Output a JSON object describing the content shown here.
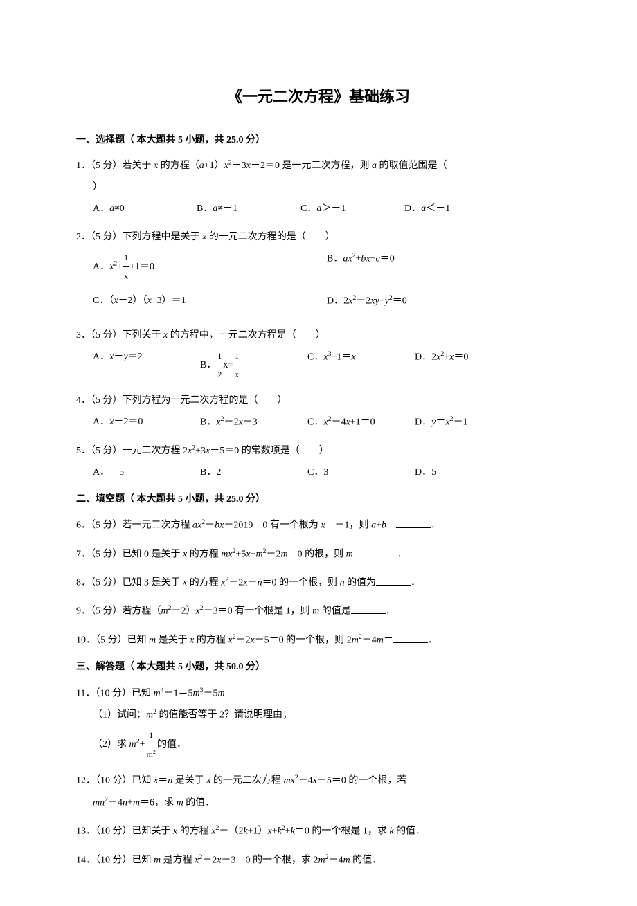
{
  "title": "《一元二次方程》基础练习",
  "sections": {
    "s1": {
      "header": "一、选择题（ 本大题共 5 小题，共 25.0 分）"
    },
    "s2": {
      "header": "二、填空题（ 本大题共 5 小题，共 25.0 分）"
    },
    "s3": {
      "header": "三、解答题（ 本大题共 5 小题，共 50.0 分）"
    }
  },
  "q1": {
    "stem_a": "1．（5 分）若关于 ",
    "stem_b": " 的方程（",
    "stem_c": "+1）",
    "stem_d": "－3",
    "stem_e": "－2＝0 是一元二次方程，则 ",
    "stem_f": " 的取值范围是（",
    "paren_close": "）",
    "optA_a": "A．",
    "optA_b": "≠0",
    "optB_a": "B．",
    "optB_b": "≠－1",
    "optC_a": "C．",
    "optC_b": "＞－1",
    "optD_a": "D．",
    "optD_b": "＜－1",
    "var_x": "x",
    "var_a": "a"
  },
  "q2": {
    "stem_a": "2．（5 分）下列方程中是关于 ",
    "stem_b": " 的一元二次方程的是（　　）",
    "var_x": "x",
    "optA_a": "A．",
    "optA_num": "1",
    "optA_den": "x",
    "optA_b": "+",
    "optA_c": "+1＝0",
    "optB_a": "B．",
    "optB_b": "+",
    "optB_c": "+",
    "optB_d": "＝0",
    "optC_a": "C．（",
    "optC_b": "－2）（",
    "optC_c": "+3）＝1",
    "optD_a": "D．2",
    "optD_b": "－2",
    "optD_c": "+",
    "optD_d": "＝0",
    "var_a": "ax",
    "var_bx": "bx",
    "var_c": "c",
    "var_xy": "xy",
    "var_y": "y"
  },
  "q3": {
    "stem_a": "3．（5 分）下列关于 ",
    "stem_b": " 的方程中，一元二次方程是（　　）",
    "var_x": "x",
    "optA_a": "A．",
    "optA_b": "－",
    "optA_c": "＝2",
    "var_y": "y",
    "optB_a": "B．",
    "optB_num1": "1",
    "optB_den1": "2",
    "optB_mid": "x=",
    "optB_num2": "1",
    "optB_den2": "x",
    "optC_a": "C．",
    "optC_b": "+1＝",
    "optD_a": "D．2",
    "optD_b": "+",
    "optD_c": "＝0"
  },
  "q4": {
    "stem": "4．（5 分）下列方程为一元二次方程的是（　　）",
    "optA_a": "A．",
    "optA_b": "－2＝0",
    "optB_a": "B．",
    "optB_b": "－2",
    "optB_c": "－3",
    "optC_a": "C．",
    "optC_b": "－4",
    "optC_c": "+1＝0",
    "optD_a": "D．",
    "optD_b": "＝",
    "optD_c": "－1",
    "var_x": "x",
    "var_y": "y"
  },
  "q5": {
    "stem_a": "5．（5 分）一元二次方程 2",
    "stem_b": "+3",
    "stem_c": "－5＝0 的常数项是（　　）",
    "var_x": "x",
    "optA": "A．－5",
    "optB": "B．2",
    "optC": "C．3",
    "optD": "D．5"
  },
  "q6": {
    "stem_a": "6．（5 分）若一元二次方程 ",
    "stem_b": "－",
    "stem_c": "－2019＝0 有一个根为 ",
    "stem_d": "＝－1，则 ",
    "stem_e": "+",
    "stem_f": "＝",
    "stem_g": "．",
    "var_ax": "ax",
    "var_bx": "bx",
    "var_x": "x",
    "var_a": "a",
    "var_b": "b"
  },
  "q7": {
    "stem_a": "7．（5 分）已知 0 是关于 ",
    "stem_b": " 的方程 ",
    "stem_c": "+5",
    "stem_d": "+",
    "stem_e": "－2",
    "stem_f": "＝0 的根，则 ",
    "stem_g": "＝",
    "stem_h": "．",
    "var_x": "x",
    "var_mx": "mx",
    "var_m": "m"
  },
  "q8": {
    "stem_a": "8．（5 分）已知 3 是关于 ",
    "stem_b": " 的方程 ",
    "stem_c": "－2",
    "stem_d": "－",
    "stem_e": "＝0 的一个根，则 ",
    "stem_f": " 的值为",
    "stem_g": "．",
    "var_x": "x",
    "var_n": "n"
  },
  "q9": {
    "stem_a": "9．（5 分）若方程（",
    "stem_b": "－2）",
    "stem_c": "－3＝0 有一个根是 1，则 ",
    "stem_d": " 的值是",
    "stem_e": "．",
    "var_m": "m",
    "var_x": "x"
  },
  "q10": {
    "stem_a": "10．（5 分）已知 ",
    "stem_b": " 是关于 ",
    "stem_c": " 的方程 ",
    "stem_d": "－2",
    "stem_e": "－5＝0 的一个根，则 2",
    "stem_f": "－4",
    "stem_g": "＝",
    "stem_h": "．",
    "var_m": "m",
    "var_x": "x"
  },
  "q11": {
    "stem_a": "11．（10 分）已知 ",
    "stem_b": "－1＝5",
    "stem_c": "－5",
    "var_m": "m",
    "p1_a": "（1）试问：",
    "p1_b": " 的值能否等于 2？请说明理由；",
    "p2_a": "（2）求 ",
    "p2_b": "+",
    "p2_num": "1",
    "p2_den": "m",
    "p2_c": "的值．"
  },
  "q12": {
    "stem_a": "12．（10 分）已知 ",
    "stem_b": "＝",
    "stem_c": " 是关于 ",
    "stem_d": " 的一元二次方程 ",
    "stem_e": "－4",
    "stem_f": "－5＝0 的一个根，若",
    "var_x": "x",
    "var_n": "n",
    "var_mx": "mx",
    "line2_a": "－4",
    "line2_b": "+",
    "line2_c": "＝6，求 ",
    "line2_d": " 的值．",
    "var_mn": "mn",
    "var_m": "m"
  },
  "q13": {
    "stem_a": "13．（10 分）已知关于 ",
    "stem_b": " 的方程 ",
    "stem_c": "－（2",
    "stem_d": "+1）",
    "stem_e": "+",
    "stem_f": "+",
    "stem_g": "＝0 的一个根是 1，求 ",
    "stem_h": " 的值．",
    "var_x": "x",
    "var_k": "k"
  },
  "q14": {
    "stem_a": "14．（10 分）已知 ",
    "stem_b": " 是方程 ",
    "stem_c": "－2",
    "stem_d": "－3＝0 的一个根，求 2",
    "stem_e": "－4",
    "stem_f": " 的值．",
    "var_m": "m",
    "var_x": "x"
  }
}
